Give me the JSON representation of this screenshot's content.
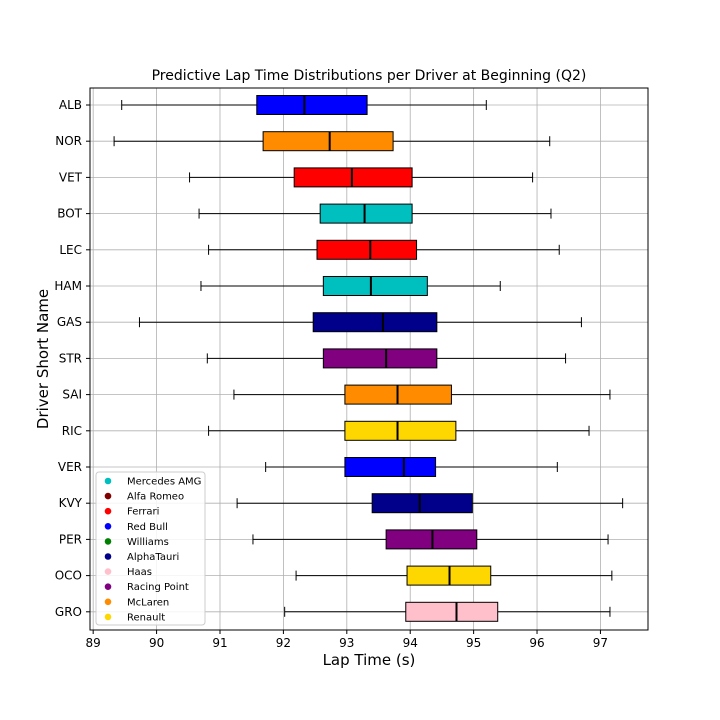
{
  "chart_data": {
    "type": "boxplot",
    "orientation": "horizontal",
    "title": "Predictive Lap Time Distributions per Driver at Beginning (Q2)",
    "xlabel": "Lap Time (s)",
    "ylabel": "Driver Short Name",
    "xlim": [
      88.95,
      97.75
    ],
    "xticks": [
      89,
      90,
      91,
      92,
      93,
      94,
      95,
      96,
      97
    ],
    "grid": true,
    "legend_position": "lower-left",
    "legend": [
      {
        "name": "Mercedes AMG",
        "color": "#00BFBF"
      },
      {
        "name": "Alfa Romeo",
        "color": "#800000"
      },
      {
        "name": "Ferrari",
        "color": "#FF0000"
      },
      {
        "name": "Red Bull",
        "color": "#0000FF"
      },
      {
        "name": "Williams",
        "color": "#008000"
      },
      {
        "name": "AlphaTauri",
        "color": "#00008B"
      },
      {
        "name": "Haas",
        "color": "#FFC0CB"
      },
      {
        "name": "Racing Point",
        "color": "#800080"
      },
      {
        "name": "McLaren",
        "color": "#FF8C00"
      },
      {
        "name": "Renault",
        "color": "#FFD700"
      }
    ],
    "drivers": [
      {
        "name": "ALB",
        "team": "Red Bull",
        "min": 89.45,
        "q1": 91.58,
        "median": 92.33,
        "q3": 93.32,
        "max": 95.2
      },
      {
        "name": "NOR",
        "team": "McLaren",
        "min": 89.33,
        "q1": 91.68,
        "median": 92.73,
        "q3": 93.73,
        "max": 96.2
      },
      {
        "name": "VET",
        "team": "Ferrari",
        "min": 90.52,
        "q1": 92.17,
        "median": 93.08,
        "q3": 94.03,
        "max": 95.93
      },
      {
        "name": "BOT",
        "team": "Mercedes AMG",
        "min": 90.67,
        "q1": 92.58,
        "median": 93.28,
        "q3": 94.03,
        "max": 96.22
      },
      {
        "name": "LEC",
        "team": "Ferrari",
        "min": 90.82,
        "q1": 92.53,
        "median": 93.37,
        "q3": 94.1,
        "max": 96.35
      },
      {
        "name": "HAM",
        "team": "Mercedes AMG",
        "min": 90.7,
        "q1": 92.63,
        "median": 93.38,
        "q3": 94.27,
        "max": 95.42
      },
      {
        "name": "GAS",
        "team": "AlphaTauri",
        "min": 89.73,
        "q1": 92.47,
        "median": 93.57,
        "q3": 94.42,
        "max": 96.7
      },
      {
        "name": "STR",
        "team": "Racing Point",
        "min": 90.8,
        "q1": 92.63,
        "median": 93.62,
        "q3": 94.42,
        "max": 96.45
      },
      {
        "name": "SAI",
        "team": "McLaren",
        "min": 91.22,
        "q1": 92.97,
        "median": 93.8,
        "q3": 94.65,
        "max": 97.15
      },
      {
        "name": "RIC",
        "team": "Renault",
        "min": 90.82,
        "q1": 92.97,
        "median": 93.8,
        "q3": 94.72,
        "max": 96.82
      },
      {
        "name": "VER",
        "team": "Red Bull",
        "min": 91.72,
        "q1": 92.97,
        "median": 93.9,
        "q3": 94.4,
        "max": 96.32
      },
      {
        "name": "KVY",
        "team": "AlphaTauri",
        "min": 91.27,
        "q1": 93.4,
        "median": 94.15,
        "q3": 94.98,
        "max": 97.35
      },
      {
        "name": "PER",
        "team": "Racing Point",
        "min": 91.52,
        "q1": 93.62,
        "median": 94.35,
        "q3": 95.05,
        "max": 97.12
      },
      {
        "name": "OCO",
        "team": "Renault",
        "min": 92.2,
        "q1": 93.95,
        "median": 94.62,
        "q3": 95.27,
        "max": 97.18
      },
      {
        "name": "GRO",
        "team": "Haas",
        "min": 92.02,
        "q1": 93.93,
        "median": 94.73,
        "q3": 95.38,
        "max": 97.15
      }
    ]
  }
}
